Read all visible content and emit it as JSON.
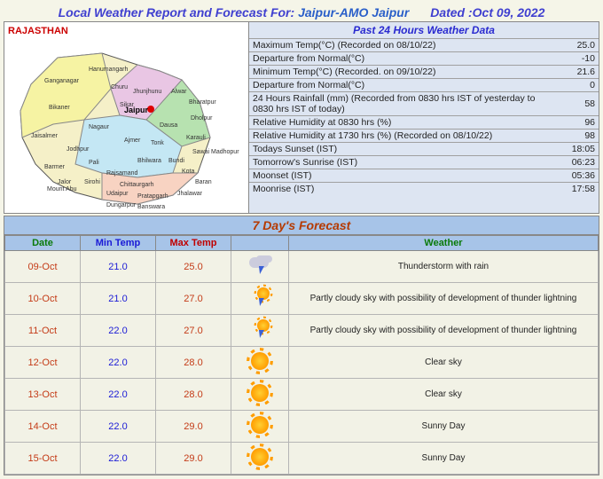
{
  "header": {
    "prefix": "Local Weather Report and Forecast For:",
    "location": "Jaipur-AMO Jaipur",
    "dated_label": "Dated :",
    "date": "Oct 09, 2022"
  },
  "map": {
    "state_label": "RAJASTHAN",
    "highlight_city": "Jaipur"
  },
  "past24": {
    "title": "Past 24 Hours Weather Data",
    "rows": [
      {
        "label": "Maximum Temp(°C) (Recorded on 08/10/22)",
        "value": "25.0"
      },
      {
        "label": "Departure from Normal(°C)",
        "value": "-10"
      },
      {
        "label": "Minimum Temp(°C) (Recorded. on 09/10/22)",
        "value": "21.6"
      },
      {
        "label": "Departure from Normal(°C)",
        "value": "0"
      },
      {
        "label": "24 Hours Rainfall (mm) (Recorded from 0830 hrs IST of yesterday to 0830 hrs IST of today)",
        "value": "58"
      },
      {
        "label": "Relative Humidity at 0830 hrs (%)",
        "value": "96"
      },
      {
        "label": "Relative Humidity at 1730 hrs (%) (Recorded on 08/10/22)",
        "value": "98"
      },
      {
        "label": "Todays Sunset (IST)",
        "value": "18:05"
      },
      {
        "label": "Tomorrow's Sunrise (IST)",
        "value": "06:23"
      },
      {
        "label": "Moonset (IST)",
        "value": "05:36"
      },
      {
        "label": "Moonrise (IST)",
        "value": "17:58"
      }
    ]
  },
  "forecast": {
    "title": "7 Day's Forecast",
    "columns": {
      "date": "Date",
      "min": "Min Temp",
      "max": "Max Temp",
      "weather": "Weather"
    },
    "rows": [
      {
        "date": "09-Oct",
        "min": "21.0",
        "max": "25.0",
        "icon": "thunder",
        "weather": "Thunderstorm with rain"
      },
      {
        "date": "10-Oct",
        "min": "21.0",
        "max": "27.0",
        "icon": "sunbolt",
        "weather": "Partly cloudy sky with possibility of development of thunder lightning"
      },
      {
        "date": "11-Oct",
        "min": "22.0",
        "max": "27.0",
        "icon": "sunbolt",
        "weather": "Partly cloudy sky with possibility of development of thunder lightning"
      },
      {
        "date": "12-Oct",
        "min": "22.0",
        "max": "28.0",
        "icon": "sun",
        "weather": "Clear sky"
      },
      {
        "date": "13-Oct",
        "min": "22.0",
        "max": "28.0",
        "icon": "sun",
        "weather": "Clear sky"
      },
      {
        "date": "14-Oct",
        "min": "22.0",
        "max": "29.0",
        "icon": "sun",
        "weather": "Sunny Day"
      },
      {
        "date": "15-Oct",
        "min": "22.0",
        "max": "29.0",
        "icon": "sun",
        "weather": "Sunny Day"
      }
    ]
  },
  "styling": {
    "title_color": "#4040d0",
    "header_bg": "#a7c4e8",
    "row_bg": "#f2f2e6",
    "border_color": "#888888",
    "date_color": "#c43b17",
    "min_color": "#1a1ad6",
    "max_color": "#c00000",
    "forecast_title_color": "#b53a00"
  }
}
